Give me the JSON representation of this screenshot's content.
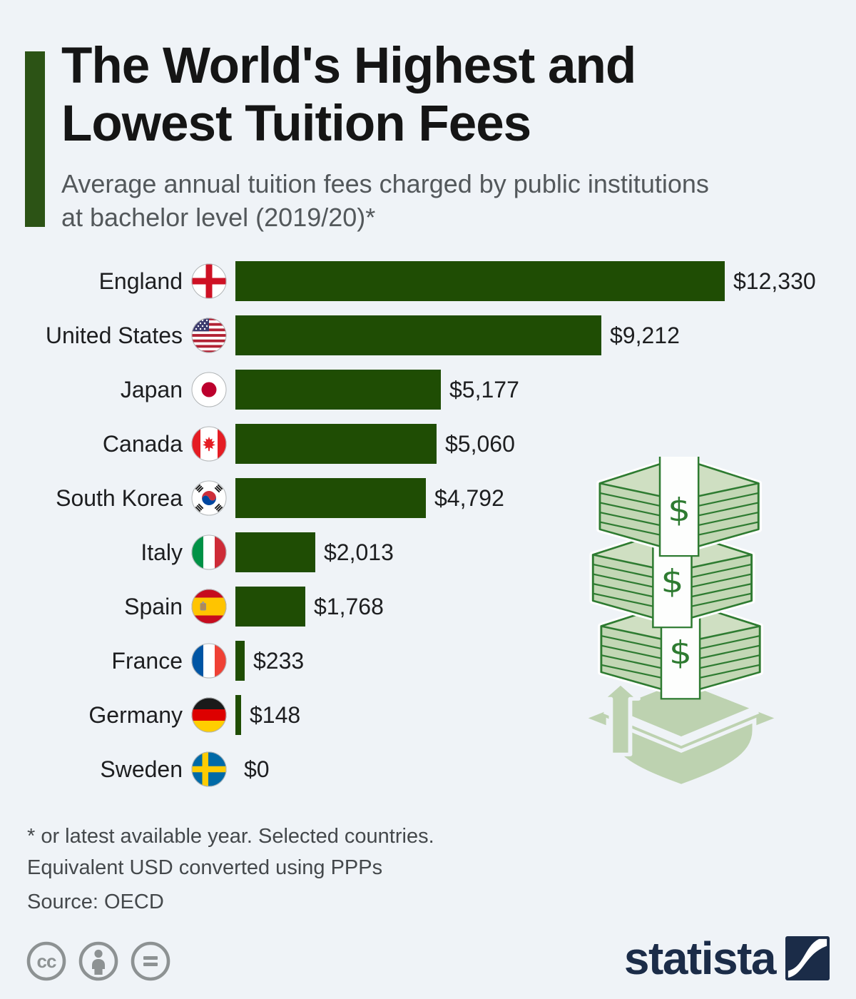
{
  "header": {
    "title_line1": "The World's Highest and",
    "title_line2": "Lowest Tuition Fees",
    "subtitle_line1": "Average annual tuition fees charged by public institutions",
    "subtitle_line2": "at bachelor level (2019/20)*"
  },
  "chart_data": {
    "type": "bar",
    "orientation": "horizontal",
    "title": "The World's Highest and Lowest Tuition Fees",
    "subtitle": "Average annual tuition fees charged by public institutions at bachelor level (2019/20)*",
    "unit": "USD",
    "xlim": [
      0,
      12330
    ],
    "grid": false,
    "categories": [
      "England",
      "United States",
      "Japan",
      "Canada",
      "South Korea",
      "Italy",
      "Spain",
      "France",
      "Germany",
      "Sweden"
    ],
    "values": [
      12330,
      9212,
      5177,
      5060,
      4792,
      2013,
      1768,
      233,
      148,
      0
    ],
    "rows": [
      {
        "country": "England",
        "flag_icon": "england-flag-icon",
        "value": 12330,
        "label": "$12,330"
      },
      {
        "country": "United States",
        "flag_icon": "united-states-flag-icon",
        "value": 9212,
        "label": "$9,212"
      },
      {
        "country": "Japan",
        "flag_icon": "japan-flag-icon",
        "value": 5177,
        "label": "$5,177"
      },
      {
        "country": "Canada",
        "flag_icon": "canada-flag-icon",
        "value": 5060,
        "label": "$5,060"
      },
      {
        "country": "South Korea",
        "flag_icon": "south-korea-flag-icon",
        "value": 4792,
        "label": "$4,792"
      },
      {
        "country": "Italy",
        "flag_icon": "italy-flag-icon",
        "value": 2013,
        "label": "$2,013"
      },
      {
        "country": "Spain",
        "flag_icon": "spain-flag-icon",
        "value": 1768,
        "label": "$1,768"
      },
      {
        "country": "France",
        "flag_icon": "france-flag-icon",
        "value": 233,
        "label": "$233"
      },
      {
        "country": "Germany",
        "flag_icon": "germany-flag-icon",
        "value": 148,
        "label": "$148"
      },
      {
        "country": "Sweden",
        "flag_icon": "sweden-flag-icon",
        "value": 0,
        "label": "$0"
      }
    ],
    "colors": {
      "bar": "#1f4d04",
      "accent_bar": "#2c5315",
      "background": "#eff3f7",
      "illustration_fill": "#bdd2b0",
      "illustration_stroke": "#2e7b31",
      "brand_navy": "#1b2c48",
      "license_gray": "#8d9293"
    }
  },
  "footnotes": {
    "line1": "* or latest available year. Selected countries.",
    "line2": "Equivalent USD converted using PPPs",
    "source": "Source: OECD"
  },
  "license_icons": [
    "cc-icon",
    "cc-by-person-icon",
    "cc-nd-equals-icon"
  ],
  "branding": {
    "name": "statista"
  }
}
